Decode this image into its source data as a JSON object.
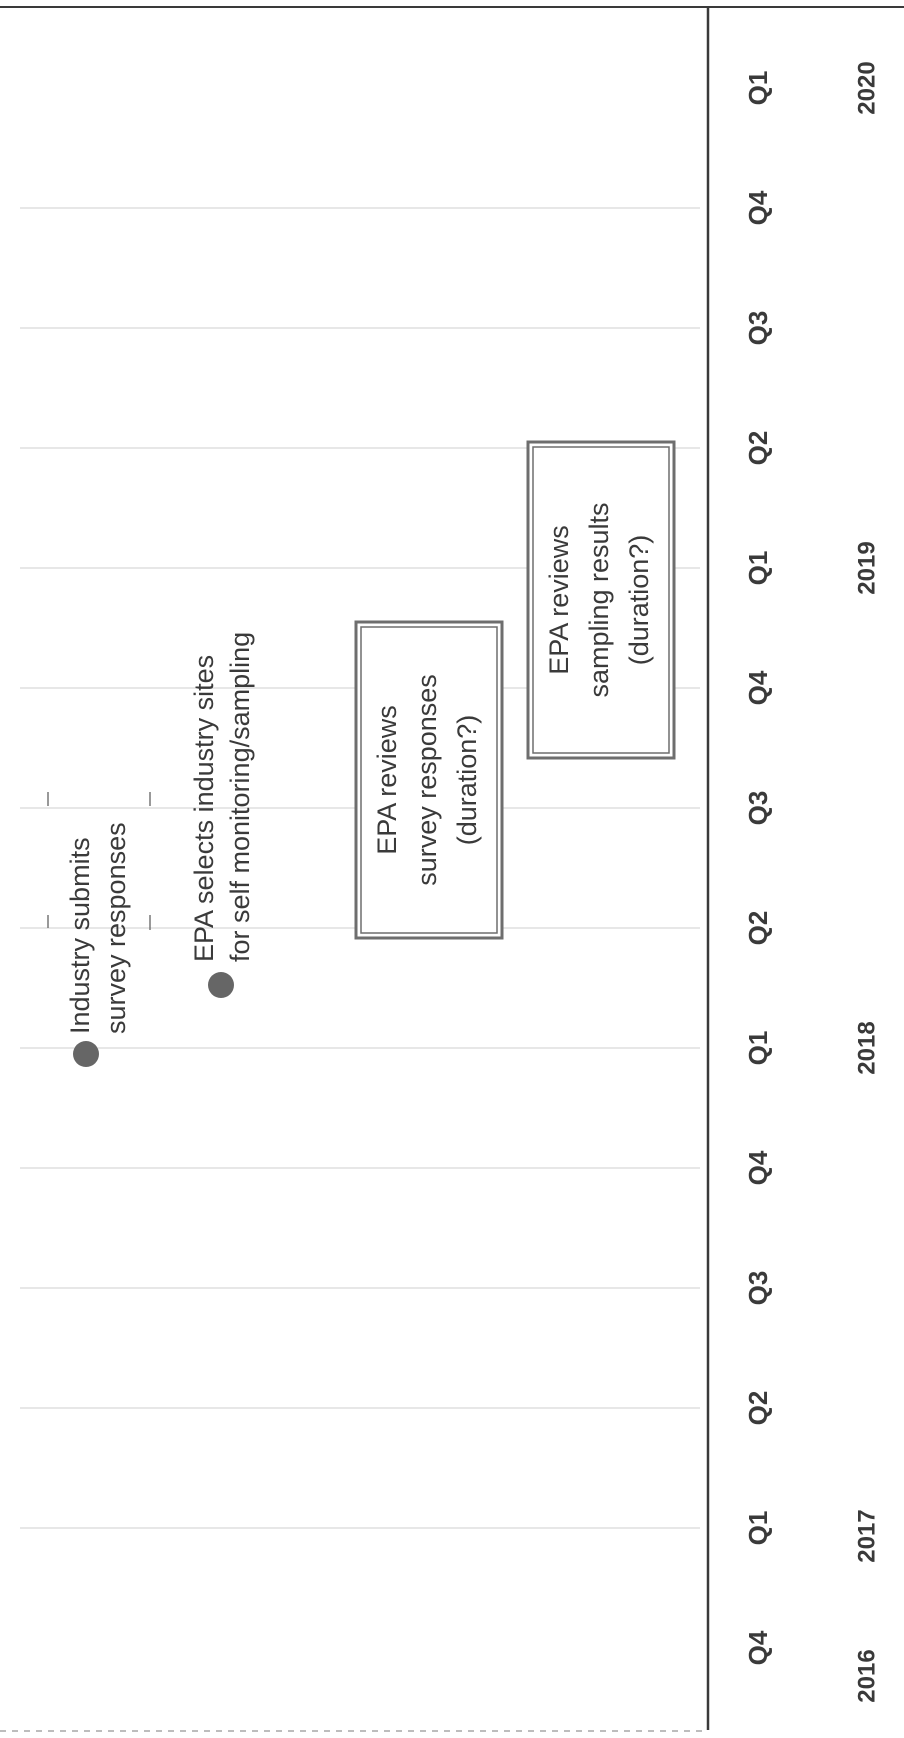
{
  "timeline": {
    "quarters": [
      {
        "label": "Q4",
        "year_label": "2016"
      },
      {
        "label": "Q1",
        "year_label": "2017"
      },
      {
        "label": "Q2",
        "year_label": ""
      },
      {
        "label": "Q3",
        "year_label": ""
      },
      {
        "label": "Q4",
        "year_label": ""
      },
      {
        "label": "Q1",
        "year_label": "2018"
      },
      {
        "label": "Q2",
        "year_label": ""
      },
      {
        "label": "Q3",
        "year_label": ""
      },
      {
        "label": "Q4",
        "year_label": ""
      },
      {
        "label": "Q1",
        "year_label": "2019"
      },
      {
        "label": "Q2",
        "year_label": ""
      },
      {
        "label": "Q3",
        "year_label": ""
      },
      {
        "label": "Q4",
        "year_label": ""
      },
      {
        "label": "Q1",
        "year_label": "2020"
      }
    ],
    "milestones": [
      {
        "name": "industry-submits-milestone",
        "quarter_index": 5,
        "lines": [
          "Industry submits",
          "survey responses"
        ]
      },
      {
        "name": "epa-selects-sites-milestone",
        "quarter_index": 6,
        "lines": [
          "EPA selects industry sites",
          "for self monitoring/sampling"
        ]
      }
    ],
    "activities": [
      {
        "name": "epa-reviews-survey-box",
        "start_quarter": 6,
        "end_quarter": 8.5,
        "lines": [
          "EPA reviews",
          "survey responses",
          "(duration?)"
        ]
      },
      {
        "name": "epa-reviews-sampling-box",
        "start_quarter": 7.5,
        "end_quarter": 10,
        "lines": [
          "EPA reviews",
          "sampling results",
          "(duration?)"
        ]
      }
    ],
    "colors": {
      "axis": "#3a3a3a",
      "grid": "#cfcfcf",
      "marker": "#666666",
      "box_border": "#6e6e6e",
      "text": "#3a3a3a"
    }
  }
}
